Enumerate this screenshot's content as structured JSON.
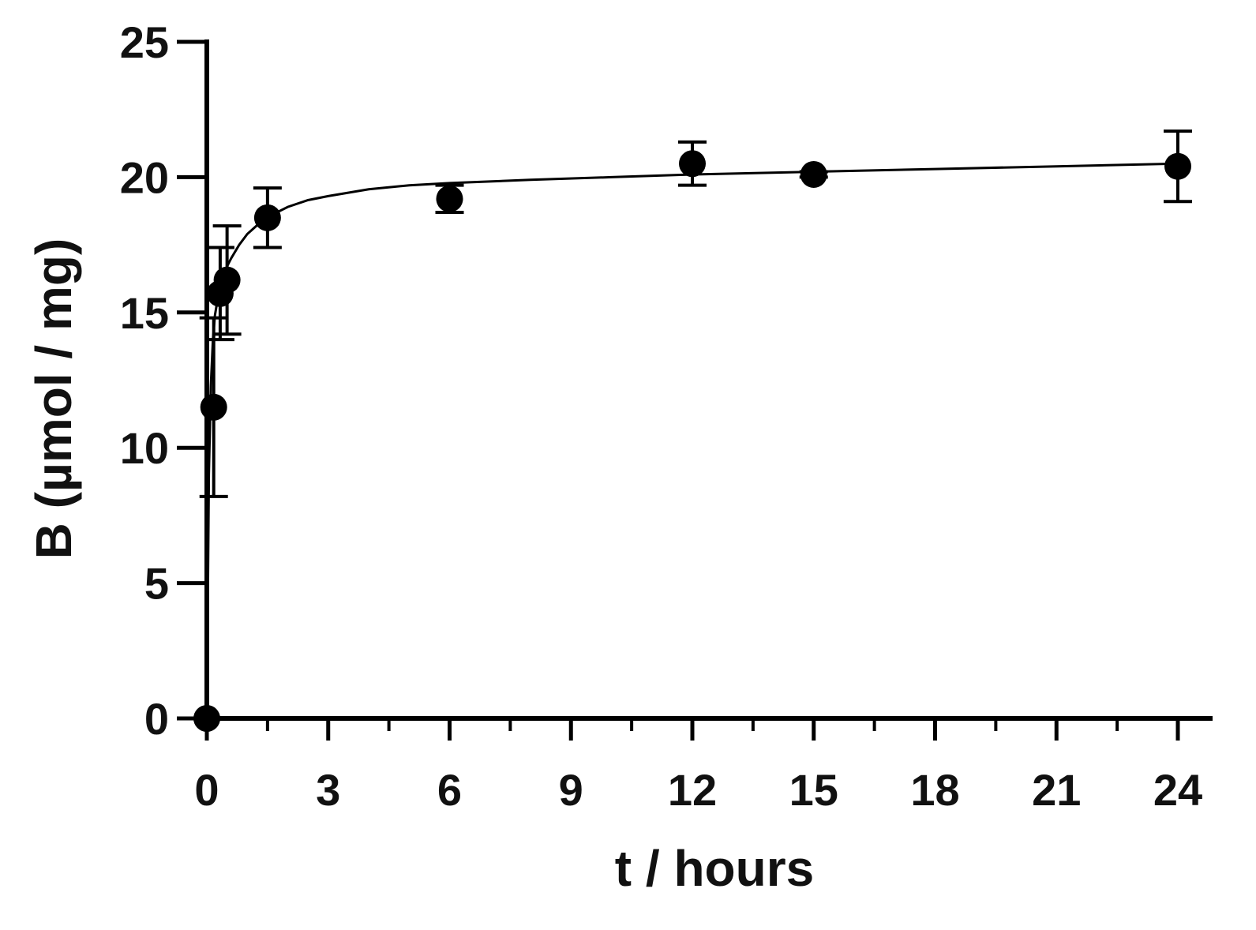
{
  "chart_data": {
    "type": "scatter",
    "title": "",
    "xlabel": "t / hours",
    "ylabel": "B (µmol / mg)",
    "xlim": [
      0,
      24.8
    ],
    "ylim": [
      0,
      25
    ],
    "x_ticks": [
      "0",
      "3",
      "6",
      "9",
      "12",
      "15",
      "18",
      "21",
      "24"
    ],
    "y_ticks": [
      "0",
      "5",
      "10",
      "15",
      "20",
      "25"
    ],
    "grid": false,
    "legend": "none",
    "series": [
      {
        "marker": "filled-circle",
        "color": "#000000",
        "x": [
          0,
          0.17,
          0.33,
          0.5,
          1.5,
          6,
          12,
          15,
          24
        ],
        "y": [
          0,
          11.5,
          15.7,
          16.2,
          18.5,
          19.2,
          20.5,
          20.1,
          20.4
        ],
        "error": [
          0,
          3.3,
          1.7,
          2.0,
          1.1,
          0.5,
          0.8,
          0.1,
          1.3
        ]
      }
    ],
    "fit_curve": {
      "color": "#000000",
      "x": [
        0,
        0.05,
        0.1,
        0.15,
        0.2,
        0.3,
        0.4,
        0.5,
        0.6,
        0.8,
        1.0,
        1.3,
        1.6,
        2.0,
        2.5,
        3,
        4,
        5,
        6,
        8,
        10,
        12,
        15,
        18,
        21,
        24
      ],
      "y": [
        0,
        9.0,
        12.3,
        14.0,
        14.9,
        15.8,
        16.3,
        16.7,
        17.0,
        17.5,
        17.9,
        18.3,
        18.6,
        18.9,
        19.15,
        19.3,
        19.55,
        19.7,
        19.78,
        19.9,
        20.0,
        20.1,
        20.2,
        20.3,
        20.4,
        20.5
      ]
    }
  }
}
